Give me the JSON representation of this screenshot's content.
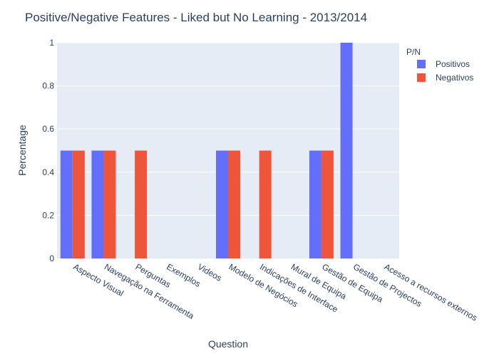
{
  "chart_data": {
    "type": "bar",
    "title": "Positive/Negative Features - Liked but No Learning  - 2013/2014",
    "xlabel": "Question",
    "ylabel": "Percentage",
    "ylim": [
      0,
      1
    ],
    "yticks": [
      0,
      0.2,
      0.4,
      0.6,
      0.8,
      1
    ],
    "ytick_labels": [
      "0",
      "0.2",
      "0.4",
      "0.6",
      "0.8",
      "1"
    ],
    "grid": true,
    "legend": {
      "title": "P/N",
      "placement": "top-right"
    },
    "categories": [
      "Aspecto Visual",
      "Navegação na Ferramenta",
      "Perguntas",
      "Exemplos",
      "Videos",
      "Modelo de Negócios",
      "Indicações de Interface",
      "Mural de Equipa",
      "Gestão de Equipa",
      "Gestão de Projectos",
      "Acesso a recursos externos"
    ],
    "series": [
      {
        "name": "Positivos",
        "color": "#636efa",
        "values": [
          0.5,
          0.5,
          0,
          0,
          0,
          0.5,
          0,
          0,
          0.5,
          1,
          0
        ]
      },
      {
        "name": "Negativos",
        "color": "#ef553b",
        "values": [
          0.5,
          0.5,
          0.5,
          0,
          0,
          0.5,
          0.5,
          0,
          0.5,
          0,
          0
        ]
      }
    ]
  }
}
